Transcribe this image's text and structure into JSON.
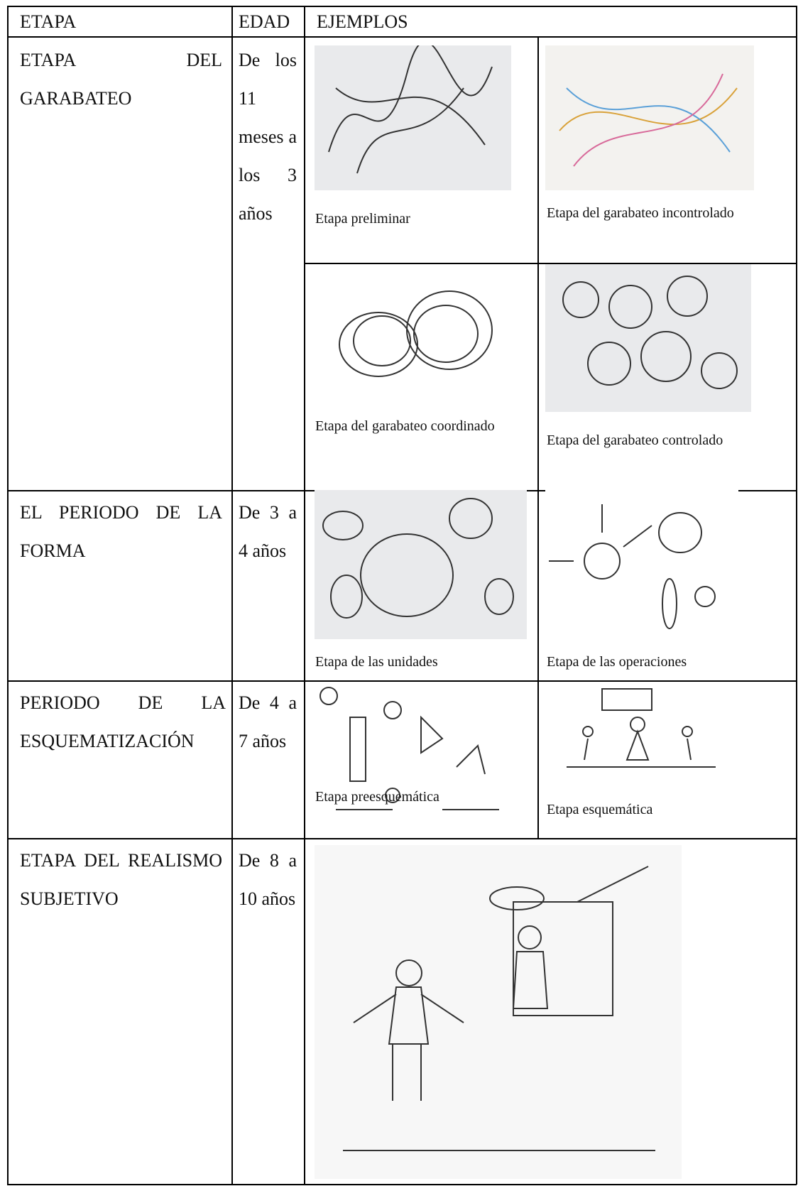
{
  "table": {
    "header": [
      "ETAPA",
      "EDAD",
      "EJEMPLOS"
    ],
    "rows": [
      {
        "etapa": "ETAPA DEL GARABATEO",
        "edad": "De los 11 meses a los 3 años",
        "examples": [
          "Etapa preliminar",
          "Etapa del garabateo incontrolado",
          "Etapa del garabateo coordinado",
          "Etapa del garabateo controlado"
        ]
      },
      {
        "etapa": "EL PERIODO DE LA FORMA",
        "edad": "De 3 a 4 años",
        "examples": [
          "Etapa de las unidades",
          "Etapa de las operaciones"
        ]
      },
      {
        "etapa": "PERIODO DE LA ESQUEMATIZACIÓN",
        "edad": "De 4 a 7 años",
        "examples": [
          "Etapa preesquemática",
          "Etapa esquemática"
        ]
      },
      {
        "etapa": "ETAPA DEL REALISMO SUBJETIVO",
        "edad": "De 8 a 10 años"
      }
    ]
  }
}
